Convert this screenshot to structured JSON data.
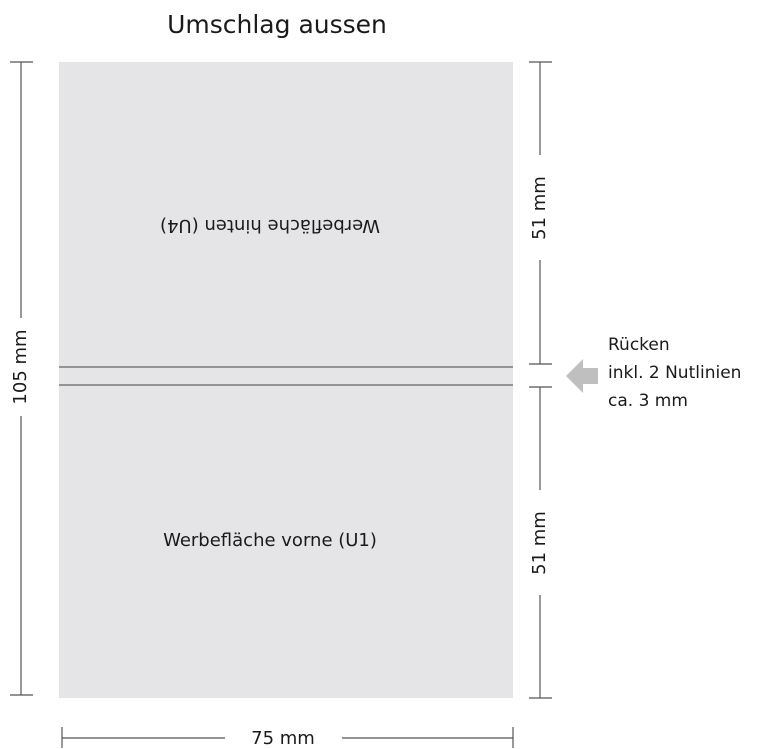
{
  "title": "Umschlag aussen",
  "panel_back_label": "Werbefläche hinten (U4)",
  "panel_front_label": "Werbefläche vorne (U1)",
  "dimensions": {
    "height_total": "105 mm",
    "width_total": "75 mm",
    "height_back": "51 mm",
    "height_front": "51 mm"
  },
  "spine_note": {
    "line1": "Rücken",
    "line2": "inkl. 2 Nutlinien",
    "line3": "ca. 3 mm"
  },
  "colors": {
    "panel_fill": "#e5e5e7",
    "fold_line": "#7a7a7a",
    "dimension_line": "#555555",
    "arrow": "#bfbfbf"
  }
}
